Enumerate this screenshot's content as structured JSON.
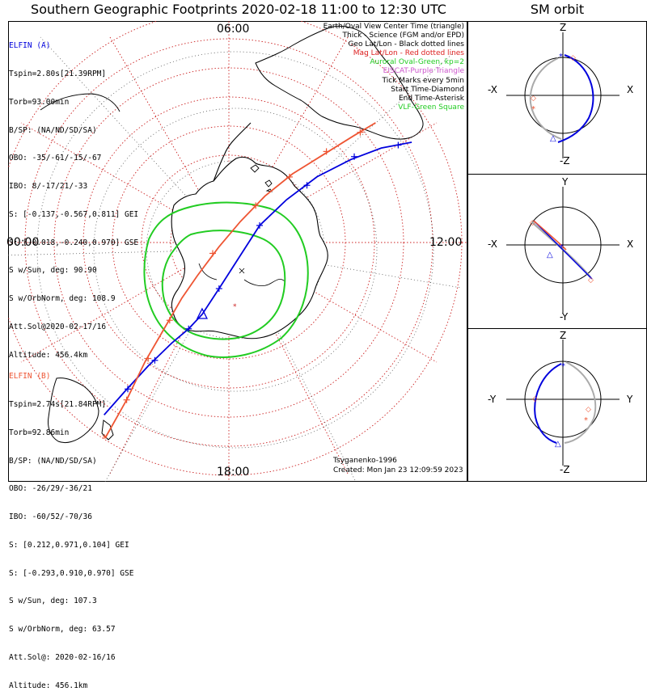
{
  "title": "Southern Geographic Footprints 2020-02-18 11:00 to 12:30 UTC",
  "sm_title": "SM orbit",
  "colors": {
    "elfin_a": "#0000dd",
    "elfin_b": "#ee5533",
    "oval": "#22cc22",
    "grid": "#cc2222",
    "purple": "#cc55cc"
  },
  "elfin_a": {
    "name": "ELFIN (A)",
    "lines": [
      "Tspin=2.80s[21.39RPM]",
      "Torb=93.00min",
      "B/SP: (NA/ND/SD/SA)",
      "OBO: -35/-61/-15/-67",
      "IBO: 8/-17/21/-33",
      "S: [-0.137,-0.567,0.811] GEI",
      "S: [-0.018,-0.240,0.970] GSE",
      "S w/Sun, deg: 90.90",
      "S w/OrbNorm, deg: 108.9",
      "Att.Sol@2020-02-17/16",
      "Altitude: 456.4km"
    ]
  },
  "elfin_b": {
    "name": "ELFIN (B)",
    "lines": [
      "Tspin=2.74s[21.84RPM]",
      "Torb=92.86min",
      "B/SP: (NA/ND/SD/SA)",
      "OBO: -26/29/-36/21",
      "IBO: -60/52/-70/36",
      "S: [0.212,0.971,0.104] GEI",
      "S: [-0.293,0.910,0.970] GSE",
      "S w/Sun, deg: 107.3",
      "S w/OrbNorm, deg: 63.57",
      "Att.Sol@: 2020-02-16/16",
      "Altitude: 456.1km"
    ]
  },
  "legend": [
    {
      "text": "Earth/Oval View Center Time (triangle)",
      "color": "#000000"
    },
    {
      "text": "Thick - Science (FGM and/or EPD)",
      "color": "#000000"
    },
    {
      "text": "Geo Lat/Lon - Black dotted lines",
      "color": "#000000"
    },
    {
      "text": "Mag Lat/Lon - Red dotted lines",
      "color": "#dd2222"
    },
    {
      "text": "Auroral Oval-Green, kp=2",
      "color": "#22cc22"
    },
    {
      "text": "EISCAT-Purple Triangle",
      "color": "#cc55cc"
    },
    {
      "text": "Tick Marks every 5min",
      "color": "#000000"
    },
    {
      "text": "Start Time-Diamond",
      "color": "#000000"
    },
    {
      "text": "End Time-Asterisk",
      "color": "#000000"
    },
    {
      "text": "VLF-Green Square",
      "color": "#22cc22"
    }
  ],
  "time_labels": {
    "top": "06:00",
    "left": "00:00",
    "right": "12:00",
    "bottom": "18:00"
  },
  "footer": {
    "credit": "Tsyganenko-1996",
    "created": "Created: Mon Jan 23 12:09:59 2023"
  },
  "sm_panels": [
    {
      "top": "Z",
      "bottom": "-Z",
      "left": "-X",
      "right": "X"
    },
    {
      "top": "Y",
      "bottom": "-Y",
      "left": "-X",
      "right": "X"
    },
    {
      "top": "Z",
      "bottom": "-Z",
      "left": "-Y",
      "right": "Y"
    }
  ],
  "chart_data": {
    "type": "polar-map",
    "projection": "south pole, magnetic local time orientation",
    "series": [
      {
        "name": "ELFIN (A)",
        "color": "#0000dd",
        "track": [
          [
            0.04,
            0.05
          ],
          [
            0.1,
            0.13
          ],
          [
            0.17,
            0.22
          ],
          [
            0.24,
            0.3
          ],
          [
            0.29,
            0.35
          ],
          [
            0.33,
            0.4
          ],
          [
            0.38,
            0.49
          ],
          [
            0.44,
            0.6
          ],
          [
            0.5,
            0.71
          ],
          [
            0.58,
            0.8
          ],
          [
            0.67,
            0.88
          ],
          [
            0.77,
            0.94
          ],
          [
            0.86,
            0.98
          ],
          [
            0.95,
            1.0
          ]
        ],
        "ticks": [
          [
            0.11,
            0.14
          ],
          [
            0.19,
            0.24
          ],
          [
            0.29,
            0.35
          ],
          [
            0.38,
            0.49
          ],
          [
            0.5,
            0.71
          ],
          [
            0.64,
            0.85
          ],
          [
            0.78,
            0.95
          ],
          [
            0.91,
            0.99
          ]
        ],
        "center": [
          0.33,
          0.4
        ]
      },
      {
        "name": "ELFIN (B)",
        "color": "#ee5533",
        "track": [
          [
            0.0,
            0.0
          ],
          [
            0.07,
            0.12
          ],
          [
            0.13,
            0.24
          ],
          [
            0.19,
            0.34
          ],
          [
            0.25,
            0.44
          ],
          [
            0.3,
            0.51
          ],
          [
            0.37,
            0.6
          ],
          [
            0.44,
            0.68
          ],
          [
            0.52,
            0.76
          ],
          [
            0.61,
            0.83
          ],
          [
            0.71,
            0.89
          ],
          [
            0.81,
            0.95
          ],
          [
            0.88,
            0.99
          ]
        ],
        "ticks": [
          [
            0.07,
            0.12
          ],
          [
            0.14,
            0.25
          ],
          [
            0.21,
            0.37
          ],
          [
            0.35,
            0.58
          ],
          [
            0.49,
            0.73
          ],
          [
            0.6,
            0.82
          ],
          [
            0.72,
            0.9
          ],
          [
            0.83,
            0.96
          ]
        ],
        "end": [
          0.0,
          0.0
        ]
      }
    ]
  }
}
